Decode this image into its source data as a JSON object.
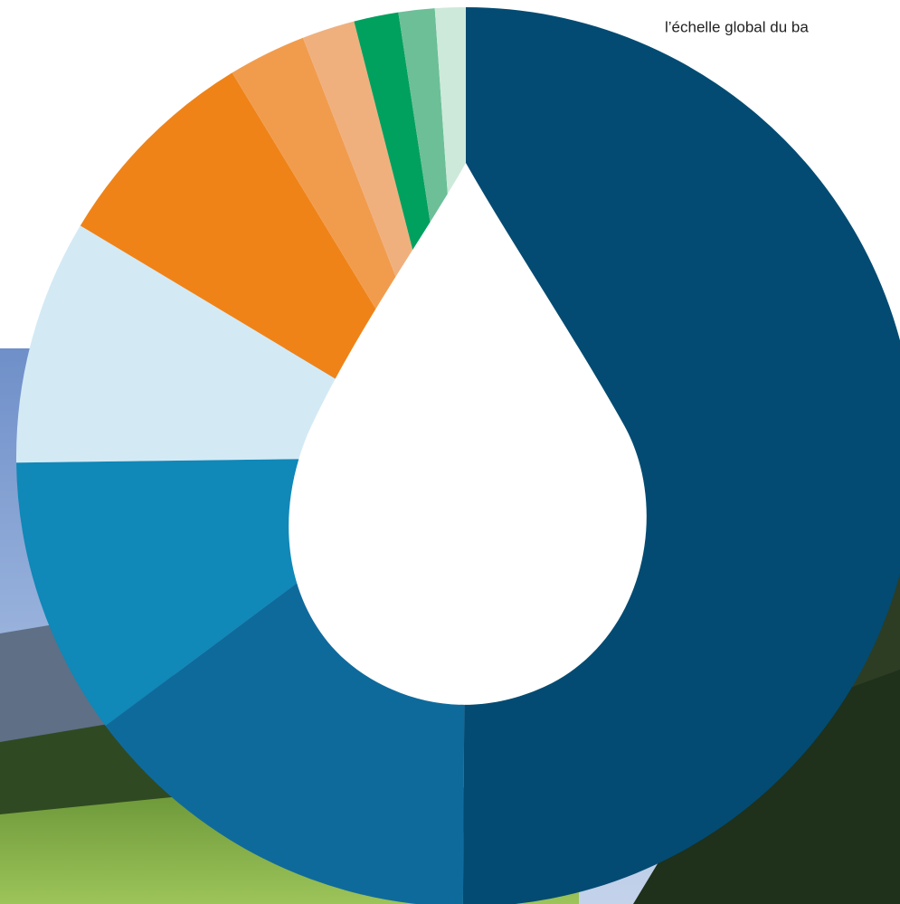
{
  "chart_data": {
    "type": "pie",
    "annotation": "l’échelle global du ba",
    "values": [
      50.1,
      14.7,
      10.0,
      8.8,
      7.7,
      2.8,
      1.9,
      1.6,
      1.3,
      1.1
    ],
    "colors": [
      "#034b72",
      "#0f6a9c",
      "#1088b8",
      "#d3eaf5",
      "#ef8318",
      "#f19c4d",
      "#efb07e",
      "#00a05f",
      "#6cbf97",
      "#cde9da"
    ],
    "start_angle": 0,
    "direction": "clockwise"
  }
}
